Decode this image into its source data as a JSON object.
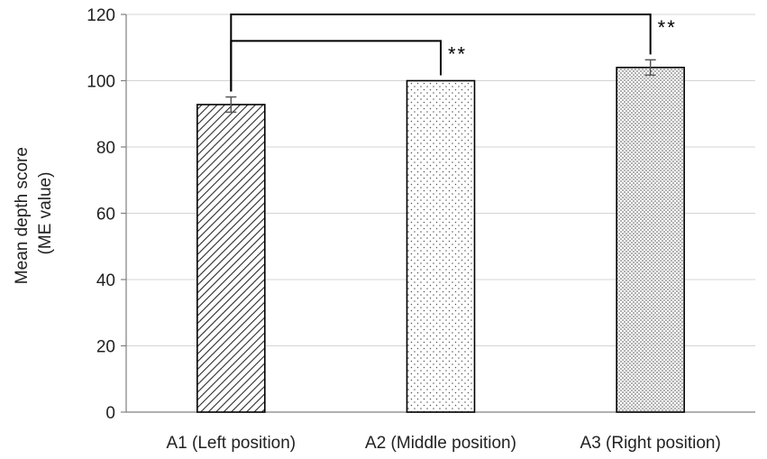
{
  "chart_data": {
    "type": "bar",
    "categories": [
      "A1 (Left position)",
      "A2 (Middle position)",
      "A3 (Right position)"
    ],
    "values": [
      92.8,
      100,
      104
    ],
    "errors": [
      2.3,
      0,
      2.3
    ],
    "patterns": [
      "diagonal-hatch",
      "sparse-dots",
      "dense-dots"
    ],
    "ylabel_lines": [
      "Mean depth score",
      "(ME value)"
    ],
    "ylim": [
      0,
      120
    ],
    "yticks": [
      0,
      20,
      40,
      60,
      80,
      100,
      120
    ],
    "grid": true,
    "significance": [
      {
        "from": 0,
        "to": 2,
        "label": "**"
      },
      {
        "from": 0,
        "to": 1,
        "label": "**"
      }
    ]
  }
}
